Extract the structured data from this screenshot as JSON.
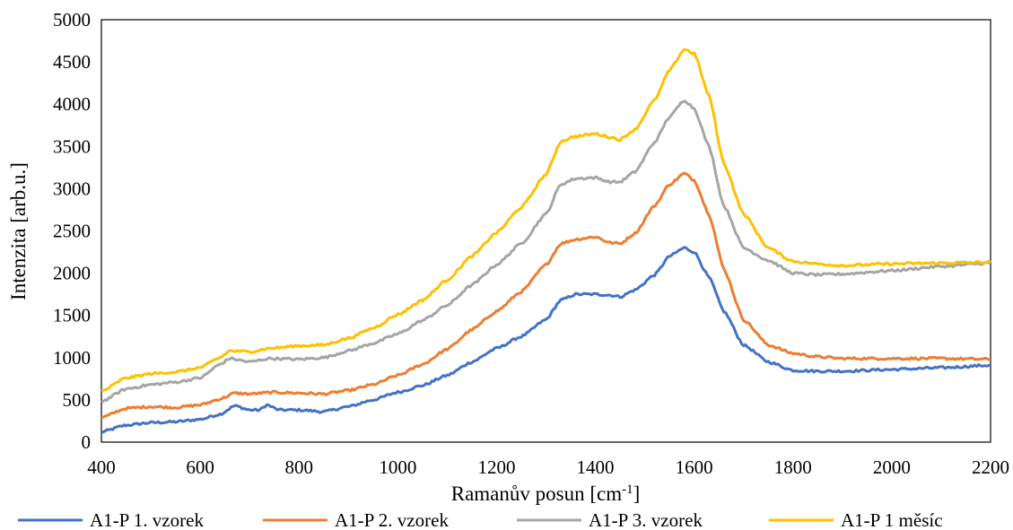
{
  "chart_data": {
    "type": "line",
    "xlabel_main": "Ramanův posun [cm",
    "xlabel_sup": "-1",
    "xlabel_end": "]",
    "ylabel": "Intenzita [arb.u.]",
    "xlim": [
      400,
      2200
    ],
    "ylim": [
      0,
      5000
    ],
    "xticks": [
      "400",
      "600",
      "800",
      "1000",
      "1200",
      "1400",
      "1600",
      "1800",
      "2000",
      "2200"
    ],
    "yticks": [
      "0",
      "500",
      "1000",
      "1500",
      "2000",
      "2500",
      "3000",
      "3500",
      "4000",
      "4500",
      "5000"
    ],
    "grid": false,
    "legend_position": "bottom",
    "series": [
      {
        "name": "A1-P 1. vzorek",
        "color": "#4472C4",
        "x": [
          400,
          450,
          500,
          550,
          600,
          640,
          670,
          700,
          720,
          735,
          760,
          800,
          850,
          900,
          950,
          1000,
          1050,
          1100,
          1150,
          1200,
          1250,
          1300,
          1330,
          1360,
          1400,
          1430,
          1450,
          1480,
          1520,
          1550,
          1580,
          1600,
          1630,
          1660,
          1700,
          1750,
          1800,
          1850,
          1900,
          2000,
          2100,
          2200
        ],
        "y": [
          120,
          200,
          230,
          240,
          270,
          330,
          430,
          380,
          380,
          440,
          380,
          380,
          360,
          420,
          500,
          590,
          670,
          790,
          950,
          1110,
          1250,
          1450,
          1680,
          1750,
          1750,
          1740,
          1720,
          1800,
          1980,
          2200,
          2300,
          2250,
          1950,
          1550,
          1150,
          950,
          850,
          840,
          840,
          860,
          880,
          910
        ]
      },
      {
        "name": "A1-P 2. vzorek",
        "color": "#ED7D31",
        "x": [
          400,
          450,
          500,
          550,
          600,
          640,
          670,
          700,
          750,
          800,
          850,
          900,
          950,
          1000,
          1050,
          1100,
          1150,
          1200,
          1250,
          1300,
          1330,
          1360,
          1400,
          1430,
          1450,
          1480,
          1520,
          1550,
          1580,
          1600,
          1630,
          1660,
          1700,
          1750,
          1800,
          1850,
          1900,
          2000,
          2100,
          2200
        ],
        "y": [
          290,
          400,
          420,
          410,
          440,
          510,
          580,
          570,
          590,
          580,
          570,
          610,
          680,
          790,
          920,
          1100,
          1330,
          1550,
          1780,
          2100,
          2350,
          2400,
          2430,
          2360,
          2350,
          2470,
          2800,
          3050,
          3180,
          3100,
          2700,
          2050,
          1450,
          1150,
          1050,
          1010,
          990,
          990,
          990,
          980
        ]
      },
      {
        "name": "A1-P 3. vzorek",
        "color": "#A5A5A5",
        "x": [
          400,
          450,
          500,
          550,
          600,
          640,
          660,
          700,
          740,
          800,
          850,
          900,
          950,
          1000,
          1050,
          1100,
          1150,
          1200,
          1250,
          1300,
          1330,
          1360,
          1400,
          1430,
          1450,
          1480,
          1520,
          1550,
          1580,
          1600,
          1630,
          1660,
          1700,
          1750,
          1800,
          1850,
          1900,
          2000,
          2100,
          2200
        ],
        "y": [
          480,
          630,
          680,
          710,
          760,
          920,
          990,
          950,
          990,
          980,
          1000,
          1080,
          1170,
          1280,
          1440,
          1620,
          1860,
          2100,
          2350,
          2700,
          3050,
          3120,
          3130,
          3080,
          3080,
          3200,
          3550,
          3850,
          4050,
          3950,
          3500,
          2800,
          2300,
          2150,
          2000,
          1980,
          1990,
          2030,
          2080,
          2120
        ]
      },
      {
        "name": "A1-P 1 měsíc",
        "color": "#FFC000",
        "x": [
          400,
          450,
          500,
          550,
          600,
          640,
          660,
          700,
          740,
          800,
          850,
          900,
          950,
          1000,
          1050,
          1100,
          1150,
          1200,
          1250,
          1300,
          1330,
          1360,
          1400,
          1430,
          1450,
          1480,
          1520,
          1550,
          1580,
          1600,
          1630,
          1660,
          1700,
          1750,
          1800,
          1850,
          1900,
          2000,
          2100,
          2200
        ],
        "y": [
          600,
          760,
          810,
          830,
          880,
          1000,
          1080,
          1070,
          1110,
          1140,
          1150,
          1230,
          1350,
          1510,
          1680,
          1920,
          2200,
          2480,
          2780,
          3170,
          3560,
          3620,
          3650,
          3610,
          3580,
          3700,
          4050,
          4400,
          4650,
          4600,
          4100,
          3300,
          2700,
          2300,
          2140,
          2110,
          2090,
          2110,
          2120,
          2130
        ]
      }
    ]
  }
}
